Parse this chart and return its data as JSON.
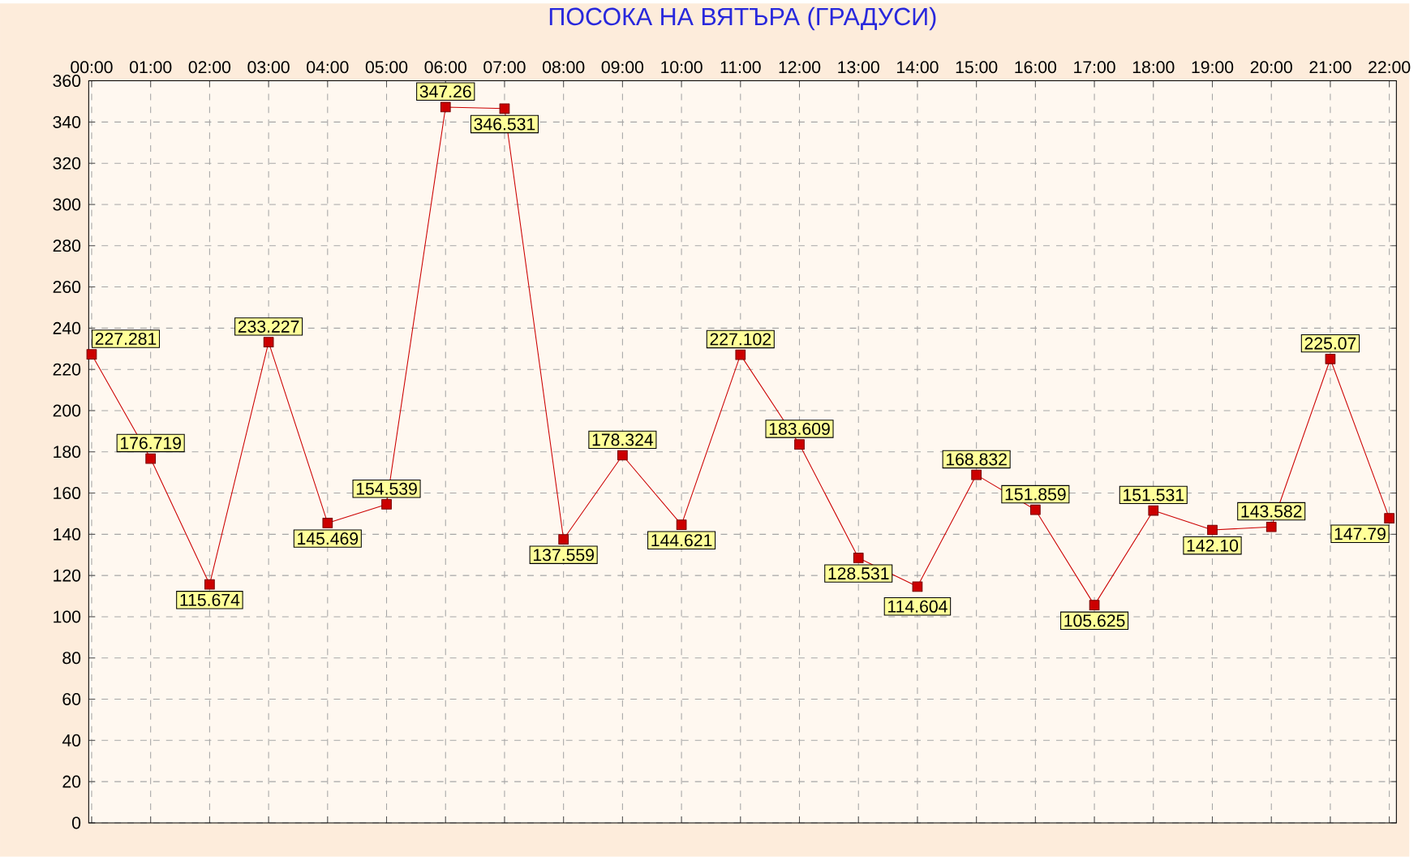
{
  "chart_data": {
    "type": "line",
    "title": "ПОСОКА НА ВЯТЪРА (ГРАДУСИ)",
    "categories": [
      "00:00",
      "01:00",
      "02:00",
      "03:00",
      "04:00",
      "05:00",
      "06:00",
      "07:00",
      "08:00",
      "09:00",
      "10:00",
      "11:00",
      "12:00",
      "13:00",
      "14:00",
      "15:00",
      "16:00",
      "17:00",
      "18:00",
      "19:00",
      "20:00",
      "21:00",
      "22:00"
    ],
    "series": [
      {
        "color": "#cc0000",
        "values": [
          227.281,
          176.719,
          115.674,
          233.227,
          145.469,
          154.539,
          347.26,
          346.531,
          137.559,
          178.324,
          144.621,
          227.102,
          183.609,
          128.531,
          114.604,
          168.832,
          151.859,
          105.625,
          151.531,
          142.1,
          143.582,
          225.07,
          147.79
        ],
        "value_labels": [
          "227.281",
          "176.719",
          "115.674",
          "233.227",
          "145.469",
          "154.539",
          "347.26",
          "346.531",
          "137.559",
          "178.324",
          "144.621",
          "227.102",
          "183.609",
          "128.531",
          "114.604",
          "168.832",
          "151.859",
          "105.625",
          "151.531",
          "142.10",
          "143.582",
          "225.07",
          "147.79"
        ]
      }
    ],
    "ylim": [
      0,
      360
    ],
    "yticks": [
      0,
      20,
      40,
      60,
      80,
      100,
      120,
      140,
      160,
      180,
      200,
      220,
      240,
      260,
      280,
      300,
      320,
      340,
      360
    ],
    "grid": true,
    "marker": "square",
    "line_style": "solid"
  }
}
